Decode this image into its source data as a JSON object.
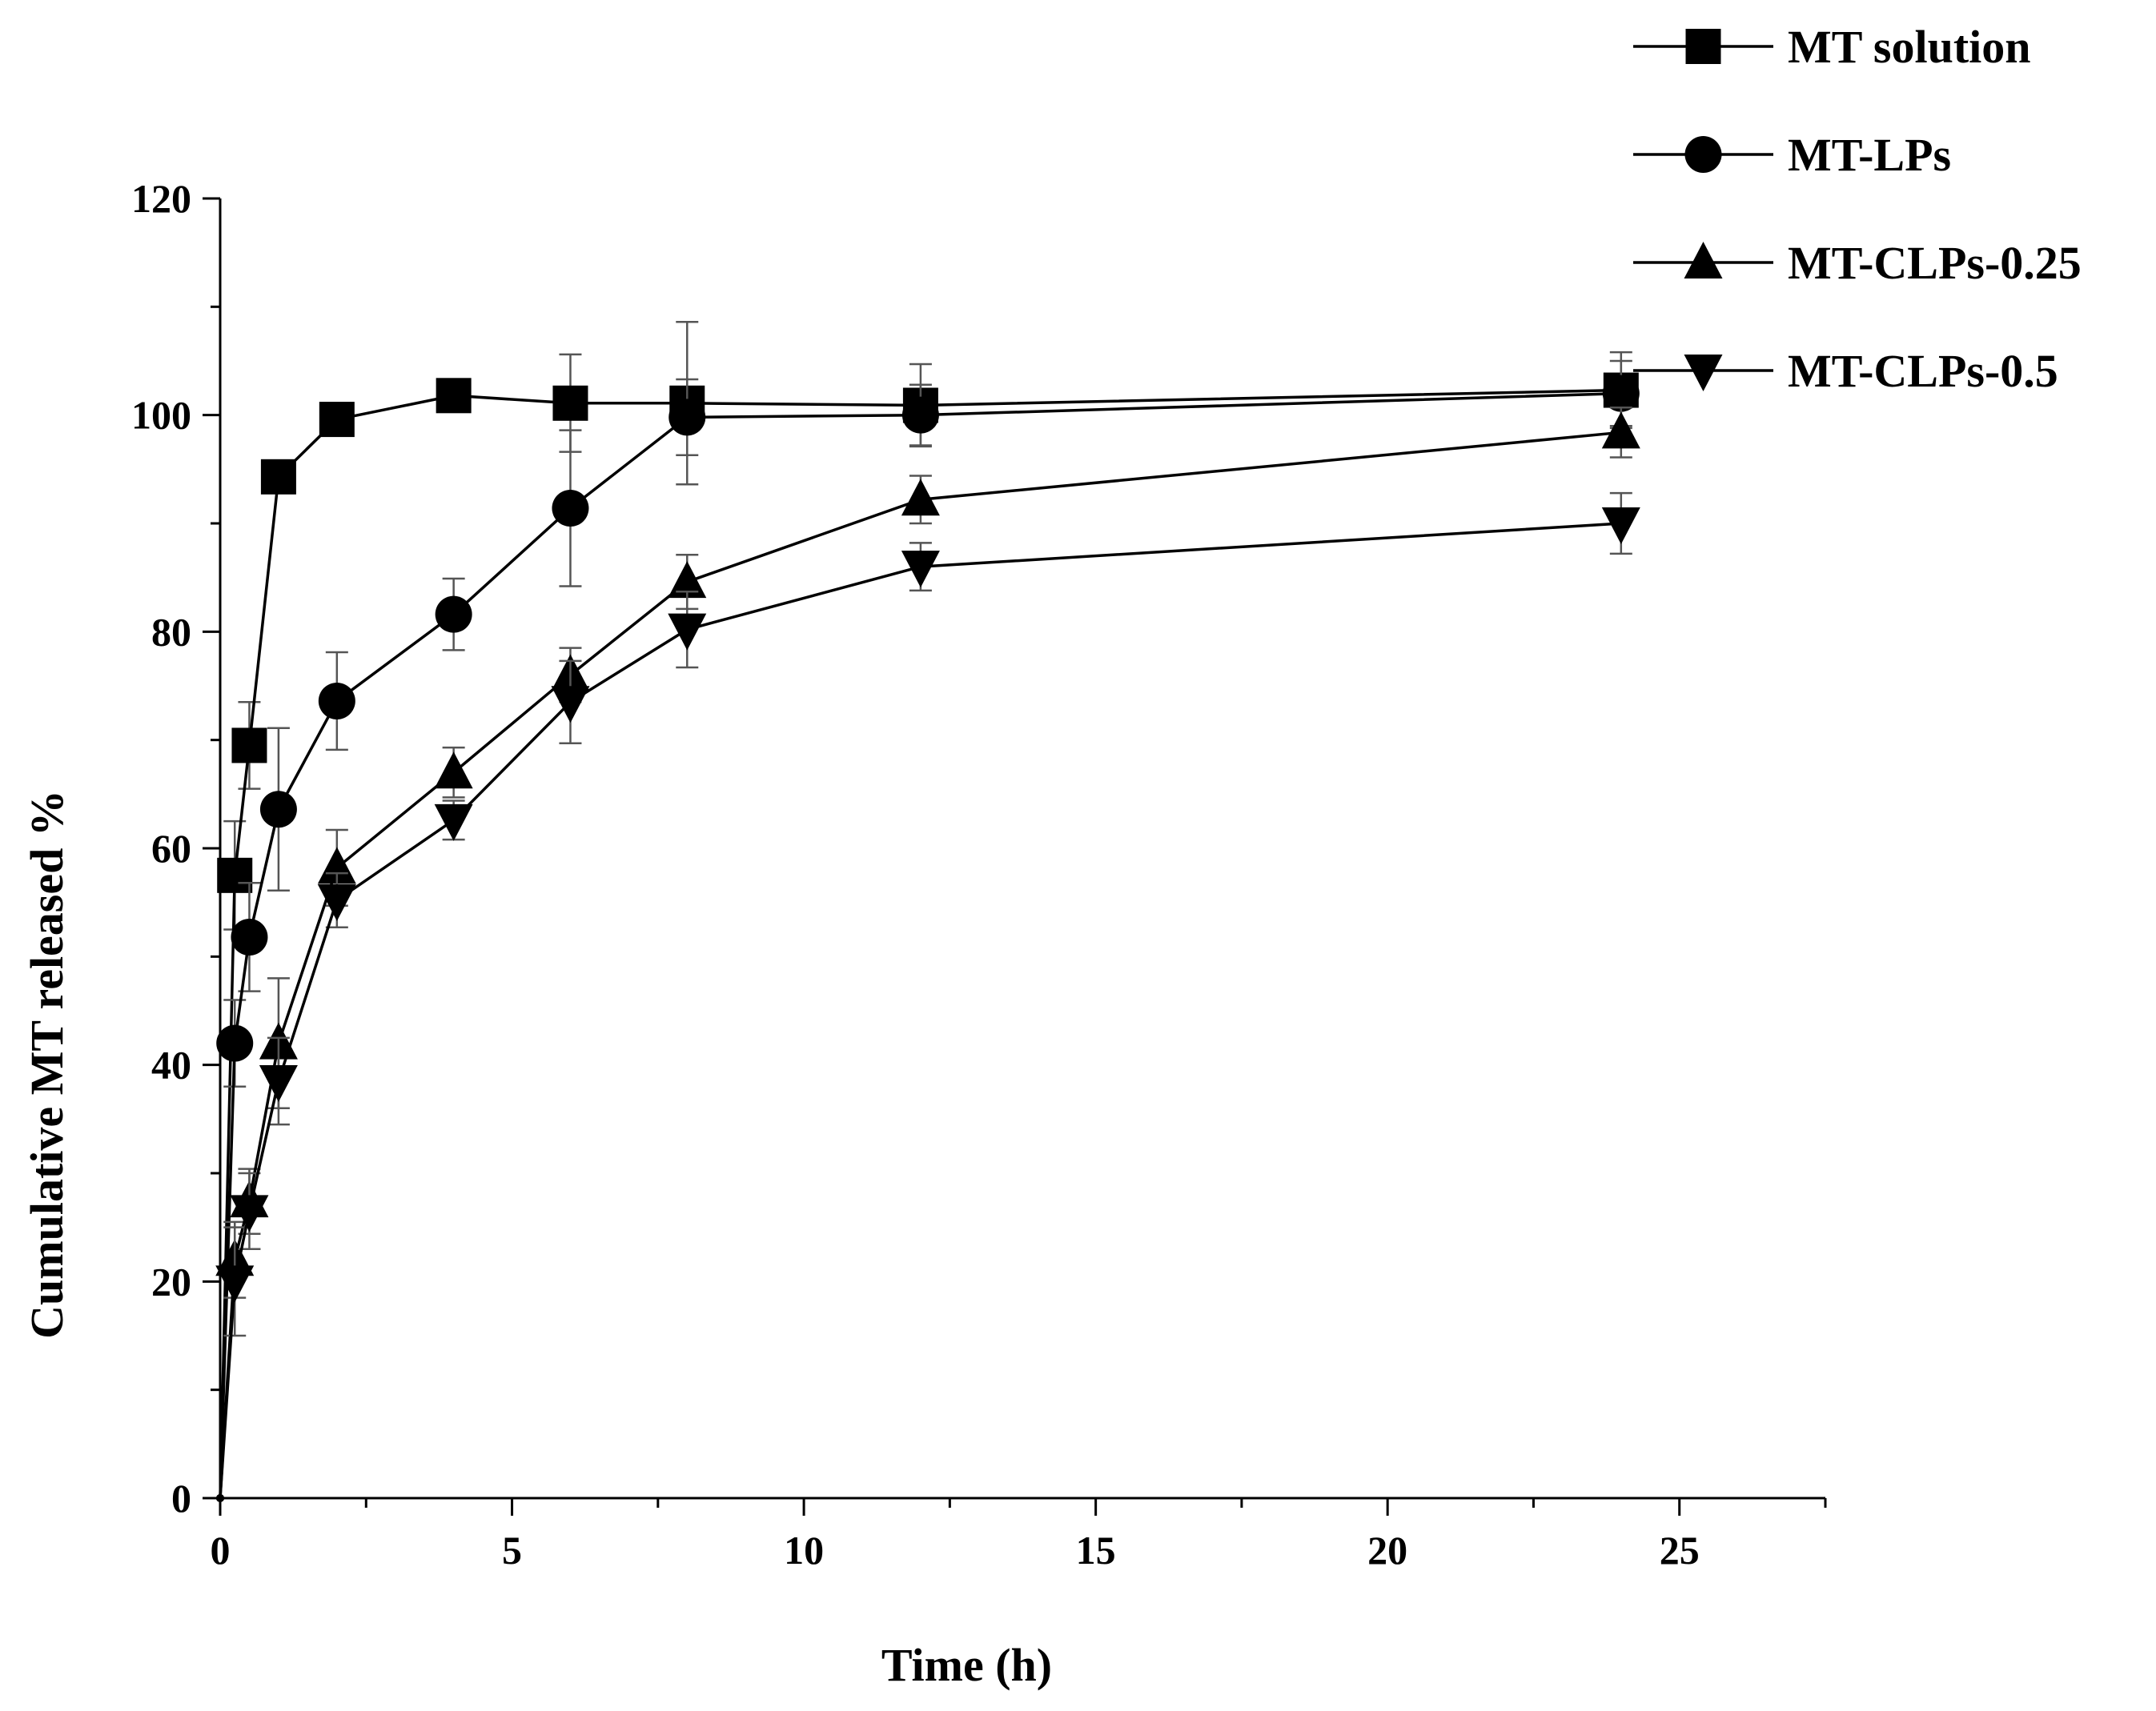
{
  "chart_data": {
    "type": "line",
    "title": "",
    "xlabel": "Time (h)",
    "ylabel": "Cumulative MT released %",
    "xlim": [
      0,
      27.5
    ],
    "ylim": [
      0,
      120
    ],
    "xticks": [
      0,
      5,
      10,
      15,
      20,
      25
    ],
    "yticks": [
      0,
      20,
      40,
      60,
      80,
      100,
      120
    ],
    "legend_position": "top-right",
    "grid": false,
    "series": [
      {
        "name": "MT solution",
        "marker": "square",
        "x": [
          0,
          0.25,
          0.5,
          1,
          2,
          4,
          6,
          8,
          12,
          24
        ],
        "y": [
          0,
          57.5,
          69.5,
          94.3,
          99.6,
          101.8,
          101.1,
          101.1,
          100.9,
          102.3
        ],
        "err": [
          0,
          5,
          4,
          0,
          1.5,
          0.8,
          4.5,
          7.5,
          3.8,
          3.5
        ]
      },
      {
        "name": "MT-LPs",
        "marker": "circle",
        "x": [
          0,
          0.25,
          0.5,
          1,
          2,
          4,
          6,
          8,
          12,
          24
        ],
        "y": [
          0,
          42,
          51.8,
          63.6,
          73.6,
          81.6,
          91.4,
          99.8,
          100,
          102
        ],
        "err": [
          0,
          4,
          5,
          7.5,
          4.5,
          3.3,
          7.2,
          3.5,
          2.8,
          3
        ]
      },
      {
        "name": "MT-CLPs-0.25",
        "marker": "triangle-up",
        "x": [
          0,
          0.25,
          0.5,
          1,
          2,
          4,
          6,
          8,
          12,
          24
        ],
        "y": [
          0,
          22,
          27.4,
          42,
          58.2,
          67,
          76,
          84.6,
          92.2,
          98.4
        ],
        "err": [
          0,
          3.5,
          3,
          6,
          3.5,
          2.3,
          2.5,
          2.5,
          2.2,
          2.3
        ]
      },
      {
        "name": "MT-CLPs-0.5",
        "marker": "triangle-down",
        "x": [
          0,
          0.25,
          0.5,
          1,
          2,
          4,
          6,
          8,
          12,
          24
        ],
        "y": [
          0,
          20,
          26.5,
          38.5,
          55.2,
          62.6,
          73.5,
          80.2,
          86,
          90
        ],
        "err": [
          0,
          5,
          3.5,
          4,
          2.5,
          1.8,
          3.8,
          3.5,
          2.2,
          2.8
        ]
      }
    ]
  }
}
